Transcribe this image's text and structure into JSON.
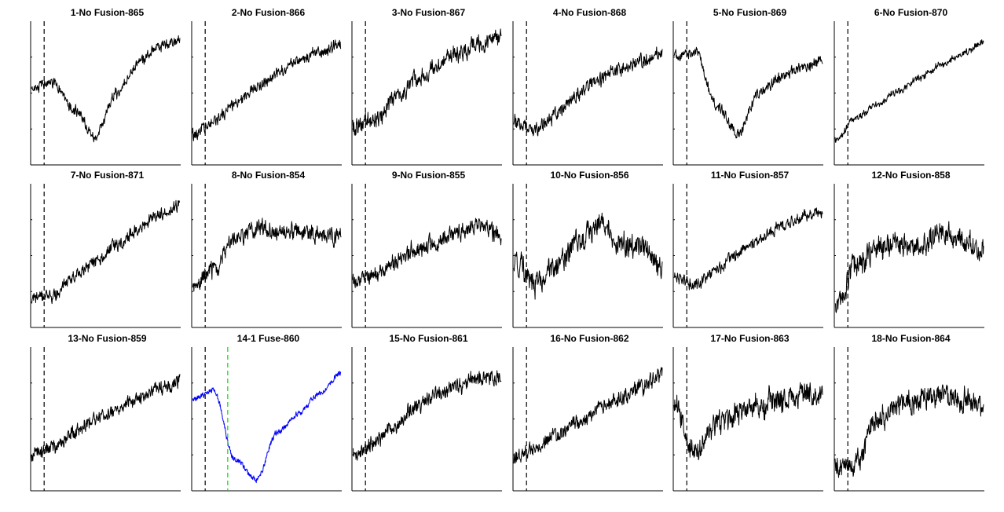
{
  "figure": {
    "background": "#ffffff",
    "trace_color_default": "#000000",
    "trace_color_highlight": "#0000ff",
    "marker_color_default": "#000000",
    "marker_color_highlight": "#00dd00"
  },
  "chart_data": [
    {
      "type": "line",
      "title": "1-No Fusion-865",
      "shape": "dip",
      "level": [
        0.55,
        0.58,
        0.38,
        0.18,
        0.5,
        0.72,
        0.86,
        0.9
      ],
      "noise": 0.03,
      "color": "#000000",
      "markers": [
        0.09
      ]
    },
    {
      "type": "line",
      "title": "2-No Fusion-866",
      "shape": "ramp",
      "level": [
        0.2,
        0.3,
        0.42,
        0.55,
        0.65,
        0.75,
        0.82,
        0.88
      ],
      "noise": 0.035,
      "color": "#000000",
      "markers": [
        0.09
      ]
    },
    {
      "type": "line",
      "title": "3-No Fusion-867",
      "shape": "ramp",
      "level": [
        0.25,
        0.3,
        0.45,
        0.6,
        0.72,
        0.8,
        0.87,
        0.92
      ],
      "noise": 0.05,
      "color": "#000000",
      "markers": [
        0.09
      ]
    },
    {
      "type": "line",
      "title": "4-No Fusion-868",
      "shape": "ramp",
      "level": [
        0.3,
        0.22,
        0.35,
        0.5,
        0.6,
        0.68,
        0.75,
        0.8
      ],
      "noise": 0.04,
      "color": "#000000",
      "markers": [
        0.09
      ]
    },
    {
      "type": "line",
      "title": "5-No Fusion-869",
      "shape": "dip",
      "level": [
        0.78,
        0.82,
        0.4,
        0.2,
        0.5,
        0.62,
        0.7,
        0.75
      ],
      "noise": 0.03,
      "color": "#000000",
      "markers": [
        0.09
      ]
    },
    {
      "type": "line",
      "title": "6-No Fusion-870",
      "shape": "ramp",
      "level": [
        0.15,
        0.32,
        0.42,
        0.52,
        0.62,
        0.72,
        0.8,
        0.88
      ],
      "noise": 0.02,
      "color": "#000000",
      "markers": [
        0.09
      ]
    },
    {
      "type": "line",
      "title": "7-No Fusion-871",
      "shape": "ramp",
      "level": [
        0.18,
        0.2,
        0.35,
        0.45,
        0.58,
        0.7,
        0.82,
        0.88
      ],
      "noise": 0.035,
      "color": "#000000",
      "markers": [
        0.09
      ]
    },
    {
      "type": "line",
      "title": "8-No Fusion-854",
      "shape": "step",
      "level": [
        0.25,
        0.4,
        0.62,
        0.72,
        0.68,
        0.7,
        0.66,
        0.65
      ],
      "noise": 0.05,
      "color": "#000000",
      "markers": [
        0.09
      ]
    },
    {
      "type": "line",
      "title": "9-No Fusion-855",
      "shape": "ramp",
      "level": [
        0.3,
        0.35,
        0.45,
        0.55,
        0.62,
        0.68,
        0.72,
        0.65
      ],
      "noise": 0.05,
      "color": "#000000",
      "markers": [
        0.09
      ]
    },
    {
      "type": "line",
      "title": "10-No Fusion-856",
      "shape": "bump",
      "level": [
        0.45,
        0.3,
        0.42,
        0.6,
        0.75,
        0.6,
        0.55,
        0.4
      ],
      "noise": 0.07,
      "color": "#000000",
      "markers": [
        0.09
      ]
    },
    {
      "type": "line",
      "title": "11-No Fusion-857",
      "shape": "ramp",
      "level": [
        0.35,
        0.28,
        0.4,
        0.52,
        0.62,
        0.72,
        0.8,
        0.85
      ],
      "noise": 0.035,
      "color": "#000000",
      "markers": [
        0.09
      ]
    },
    {
      "type": "line",
      "title": "12-No Fusion-858",
      "shape": "step",
      "level": [
        0.1,
        0.45,
        0.55,
        0.6,
        0.58,
        0.68,
        0.62,
        0.55
      ],
      "noise": 0.07,
      "color": "#000000",
      "markers": [
        0.09
      ]
    },
    {
      "type": "line",
      "title": "13-No Fusion-859",
      "shape": "ramp",
      "level": [
        0.25,
        0.3,
        0.4,
        0.5,
        0.58,
        0.66,
        0.74,
        0.78
      ],
      "noise": 0.04,
      "color": "#000000",
      "markers": [
        0.09
      ]
    },
    {
      "type": "line",
      "title": "14-1 Fuse-860",
      "shape": "dip",
      "level": [
        0.65,
        0.72,
        0.2,
        0.05,
        0.4,
        0.55,
        0.7,
        0.85
      ],
      "noise": 0.015,
      "color": "#0000ff",
      "markers": [
        0.09,
        0.24
      ],
      "highlight": true
    },
    {
      "type": "line",
      "title": "15-No Fusion-861",
      "shape": "ramp",
      "level": [
        0.25,
        0.32,
        0.45,
        0.6,
        0.7,
        0.76,
        0.82,
        0.8
      ],
      "noise": 0.045,
      "color": "#000000",
      "markers": [
        0.09
      ]
    },
    {
      "type": "line",
      "title": "16-No Fusion-862",
      "shape": "ramp",
      "level": [
        0.22,
        0.28,
        0.38,
        0.48,
        0.58,
        0.66,
        0.75,
        0.85
      ],
      "noise": 0.045,
      "color": "#000000",
      "markers": [
        0.09
      ]
    },
    {
      "type": "line",
      "title": "17-No Fusion-863",
      "shape": "ramp",
      "level": [
        0.62,
        0.25,
        0.45,
        0.55,
        0.6,
        0.66,
        0.7,
        0.68
      ],
      "noise": 0.07,
      "color": "#000000",
      "markers": [
        0.09
      ]
    },
    {
      "type": "line",
      "title": "18-No Fusion-864",
      "shape": "step",
      "level": [
        0.15,
        0.18,
        0.52,
        0.6,
        0.65,
        0.68,
        0.65,
        0.62
      ],
      "noise": 0.07,
      "color": "#000000",
      "markers": [
        0.09
      ]
    }
  ]
}
